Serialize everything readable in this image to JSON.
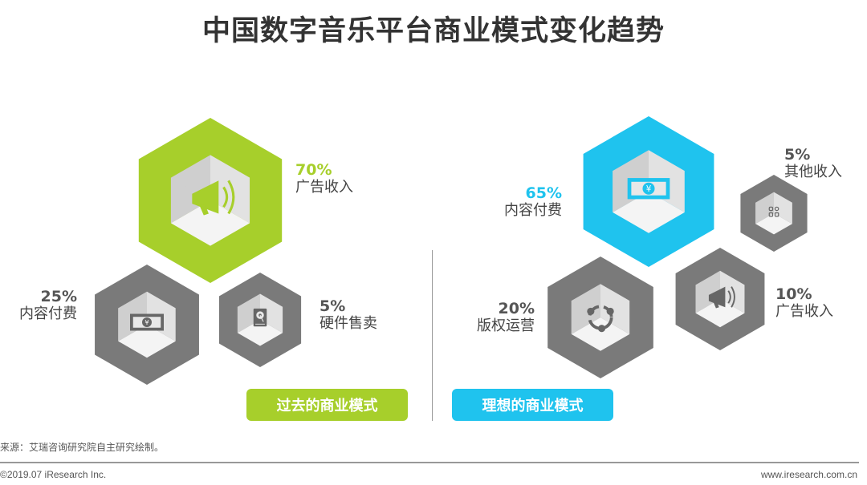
{
  "title": "中国数字音乐平台商业模式变化趋势",
  "colors": {
    "green": "#a7cf2b",
    "blue": "#1fc3ee",
    "gray": "#7a7a7a"
  },
  "past": {
    "button_label": "过去的商业模式",
    "items": [
      {
        "percent": "70%",
        "label": "广告收入",
        "icon": "megaphone-icon",
        "value": 70
      },
      {
        "percent": "25%",
        "label": "内容付费",
        "icon": "banknote-icon",
        "value": 25
      },
      {
        "percent": "5%",
        "label": "硬件售卖",
        "icon": "hard-drive-icon",
        "value": 5
      }
    ]
  },
  "ideal": {
    "button_label": "理想的商业模式",
    "items": [
      {
        "percent": "65%",
        "label": "内容付费",
        "icon": "banknote-icon",
        "value": 65
      },
      {
        "percent": "5%",
        "label": "其他收入",
        "icon": "apps-grid-icon",
        "value": 5
      },
      {
        "percent": "20%",
        "label": "版权运营",
        "icon": "share-network-icon",
        "value": 20
      },
      {
        "percent": "10%",
        "label": "广告收入",
        "icon": "megaphone-icon",
        "value": 10
      }
    ]
  },
  "footer": {
    "source": "来源：艾瑞咨询研究院自主研究绘制。",
    "copyright": "©2019.07 iResearch Inc.",
    "url": "www.iresearch.com.cn"
  }
}
